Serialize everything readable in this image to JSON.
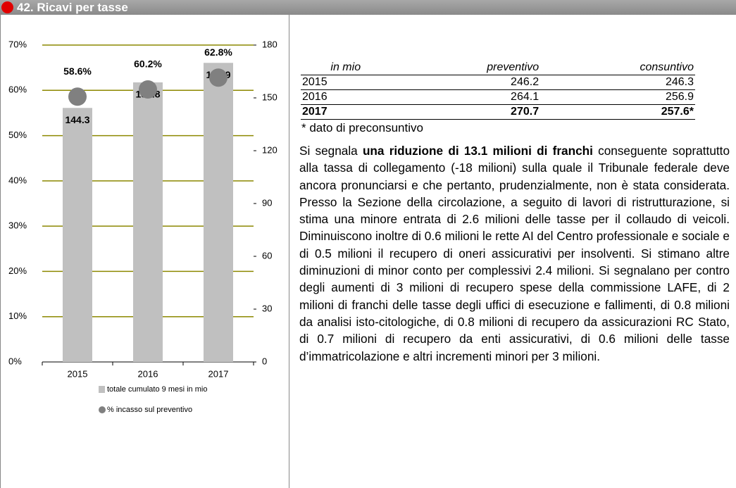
{
  "header": {
    "title": "42. Ricavi per tasse"
  },
  "chart_data": {
    "type": "bar-dot",
    "categories": [
      "2015",
      "2016",
      "2017"
    ],
    "series": [
      {
        "name": "totale cumulato 9 mesi in mio",
        "color": "#c0c0c0",
        "values": [
          144.3,
          158.8,
          169.9
        ],
        "axis": "y2",
        "kind": "bar"
      },
      {
        "name": "% incasso sul preventivo",
        "color": "#808080",
        "values": [
          58.6,
          60.2,
          62.8
        ],
        "value_labels": [
          "58.6%",
          "60.2%",
          "62.8%"
        ],
        "axis": "y",
        "kind": "dot"
      }
    ],
    "ylim": [
      0,
      70
    ],
    "yticks": [
      {
        "value": 0,
        "label": "0%"
      },
      {
        "value": 10,
        "label": "10%"
      },
      {
        "value": 20,
        "label": "20%"
      },
      {
        "value": 30,
        "label": "30%"
      },
      {
        "value": 40,
        "label": "40%"
      },
      {
        "value": 50,
        "label": "50%"
      },
      {
        "value": 60,
        "label": "60%"
      },
      {
        "value": 70,
        "label": "70%"
      }
    ],
    "y2lim": [
      0,
      180
    ],
    "y2ticks": [
      0,
      30,
      60,
      90,
      120,
      150,
      180
    ],
    "grid": true,
    "grid_color": "#8c8800"
  },
  "table": {
    "columns": [
      "in mio",
      "preventivo",
      "consuntivo"
    ],
    "rows": [
      [
        "2015",
        246.2,
        246.3
      ],
      [
        "2016",
        264.1,
        256.9
      ],
      [
        "2017",
        270.7,
        "257.6*"
      ]
    ]
  },
  "note": "* dato di preconsuntivo",
  "paragraph": {
    "before": "Si segnala ",
    "bold": "una riduzione di 13.1 milioni di franchi",
    "after": " conseguente soprattutto alla tassa di collegamento (-18 milioni) sulla quale il Tribunale federale deve ancora pronunciarsi e che pertanto, prudenzialmente, non è stata considerata. Presso la Sezione della circolazione, a seguito di lavori di ristrutturazione, si stima una minore entrata di 2.6 milioni delle tasse per il collaudo di veicoli. Diminuiscono inoltre di 0.6 milioni le rette AI del Centro professionale e sociale e di 0.5 milioni il recupero di oneri assicurativi per insolventi. Si stimano altre diminuzioni di minor conto per complessivi 2.4 milioni. Si segnalano per contro degli aumenti di 3 milioni di recupero spese della commissione LAFE, di 2 milioni di franchi delle tasse degli uffici di esecuzione e fallimenti, di 0.8 milioni da analisi isto-citologiche, di 0.8 milioni di recupero da assicurazioni RC Stato, di 0.7 milioni di recupero da enti assicurativi, di 0.6 milioni delle tasse d’immatricolazione e altri incrementi minori per 3 milioni."
  }
}
